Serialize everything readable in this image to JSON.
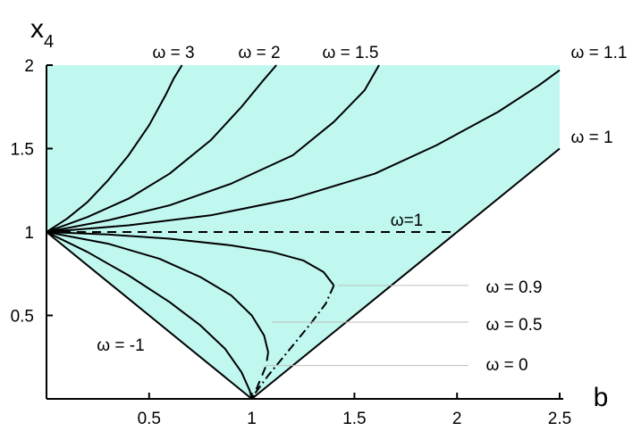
{
  "chart_data": {
    "type": "line",
    "xlabel": "b",
    "ylabel": "x",
    "ylabel_subscript": "4",
    "xlim": [
      0,
      2.5
    ],
    "ylim": [
      0,
      2
    ],
    "x_ticks": [
      {
        "value": 0.5,
        "label": "0.5"
      },
      {
        "value": 1,
        "label": "1"
      },
      {
        "value": 1.5,
        "label": "1.5"
      },
      {
        "value": 2,
        "label": "2"
      },
      {
        "value": 2.5,
        "label": "2.5"
      }
    ],
    "y_ticks": [
      {
        "value": 0.5,
        "label": "0.5"
      },
      {
        "value": 1,
        "label": "1"
      },
      {
        "value": 1.5,
        "label": "1.5"
      },
      {
        "value": 2,
        "label": "2"
      }
    ],
    "region": {
      "description": "shaded allowed region",
      "color": "#c0f8f0",
      "boundary": [
        [
          0,
          2
        ],
        [
          0,
          1
        ],
        [
          1,
          0
        ],
        [
          2.5,
          1.5
        ],
        [
          2.5,
          2
        ]
      ]
    },
    "series": [
      {
        "label": "ω = 3",
        "style": "solid",
        "points": [
          [
            0,
            1
          ],
          [
            0.1,
            1.08
          ],
          [
            0.2,
            1.18
          ],
          [
            0.3,
            1.31
          ],
          [
            0.4,
            1.46
          ],
          [
            0.5,
            1.64
          ],
          [
            0.58,
            1.82
          ],
          [
            0.62,
            1.92
          ],
          [
            0.66,
            2.0
          ]
        ]
      },
      {
        "label": "ω = 2",
        "style": "solid",
        "points": [
          [
            0,
            1
          ],
          [
            0.2,
            1.09
          ],
          [
            0.4,
            1.2
          ],
          [
            0.6,
            1.35
          ],
          [
            0.8,
            1.55
          ],
          [
            0.95,
            1.75
          ],
          [
            1.05,
            1.9
          ],
          [
            1.12,
            2.0
          ]
        ]
      },
      {
        "label": "ω = 1.5",
        "style": "solid",
        "points": [
          [
            0,
            1
          ],
          [
            0.3,
            1.07
          ],
          [
            0.6,
            1.16
          ],
          [
            0.9,
            1.29
          ],
          [
            1.2,
            1.46
          ],
          [
            1.4,
            1.66
          ],
          [
            1.55,
            1.85
          ],
          [
            1.62,
            2.0
          ]
        ]
      },
      {
        "label": "ω = 1.1",
        "style": "solid",
        "points": [
          [
            0,
            1
          ],
          [
            0.4,
            1.04
          ],
          [
            0.8,
            1.1
          ],
          [
            1.2,
            1.2
          ],
          [
            1.6,
            1.35
          ],
          [
            1.9,
            1.52
          ],
          [
            2.2,
            1.72
          ],
          [
            2.4,
            1.88
          ],
          [
            2.5,
            1.97
          ]
        ]
      },
      {
        "label": "ω = 1",
        "style": "solid",
        "points": [
          [
            1,
            0
          ],
          [
            2.5,
            1.5
          ]
        ]
      },
      {
        "label": "ω=1",
        "style": "dashed",
        "points": [
          [
            0,
            1
          ],
          [
            2,
            1
          ]
        ]
      },
      {
        "label": "ω = 0.9",
        "style": "solid",
        "points": [
          [
            0,
            1
          ],
          [
            0.3,
            0.985
          ],
          [
            0.6,
            0.96
          ],
          [
            0.9,
            0.92
          ],
          [
            1.1,
            0.88
          ],
          [
            1.25,
            0.83
          ],
          [
            1.35,
            0.76
          ],
          [
            1.4,
            0.68
          ]
        ]
      },
      {
        "label": "ω = 0.9",
        "style": "dashdot",
        "points": [
          [
            1.4,
            0.68
          ],
          [
            1.36,
            0.57
          ],
          [
            1.28,
            0.44
          ],
          [
            1.18,
            0.29
          ],
          [
            1.08,
            0.14
          ],
          [
            1.02,
            0.04
          ],
          [
            1.0,
            0.0
          ]
        ]
      },
      {
        "label": "ω = 0.5",
        "style": "solid",
        "points": [
          [
            0,
            1
          ],
          [
            0.3,
            0.93
          ],
          [
            0.55,
            0.84
          ],
          [
            0.75,
            0.73
          ],
          [
            0.9,
            0.62
          ],
          [
            1.0,
            0.5
          ],
          [
            1.06,
            0.38
          ],
          [
            1.08,
            0.28
          ]
        ]
      },
      {
        "label": "ω = 0.5",
        "style": "dashed",
        "points": [
          [
            1.08,
            0.28
          ],
          [
            1.07,
            0.2
          ],
          [
            1.04,
            0.11
          ],
          [
            1.02,
            0.05
          ],
          [
            1.0,
            0.0
          ]
        ]
      },
      {
        "label": "ω = 0",
        "style": "solid",
        "points": [
          [
            0,
            1
          ],
          [
            0.2,
            0.88
          ],
          [
            0.4,
            0.74
          ],
          [
            0.6,
            0.58
          ],
          [
            0.75,
            0.44
          ],
          [
            0.87,
            0.3
          ],
          [
            0.95,
            0.16
          ],
          [
            0.99,
            0.05
          ],
          [
            1.0,
            0.0
          ]
        ]
      },
      {
        "label": "ω = -1",
        "style": "solid",
        "points": [
          [
            0,
            1
          ],
          [
            1,
            0
          ]
        ]
      }
    ],
    "annotations": [
      {
        "text": "ω = 3"
      },
      {
        "text": "ω = 2"
      },
      {
        "text": "ω = 1.5"
      },
      {
        "text": "ω = 1.1"
      },
      {
        "text": "ω = 1"
      },
      {
        "text": "ω=1"
      },
      {
        "text": "ω = 0.9"
      },
      {
        "text": "ω = 0.5"
      },
      {
        "text": "ω = 0"
      },
      {
        "text": "ω = -1"
      }
    ]
  }
}
